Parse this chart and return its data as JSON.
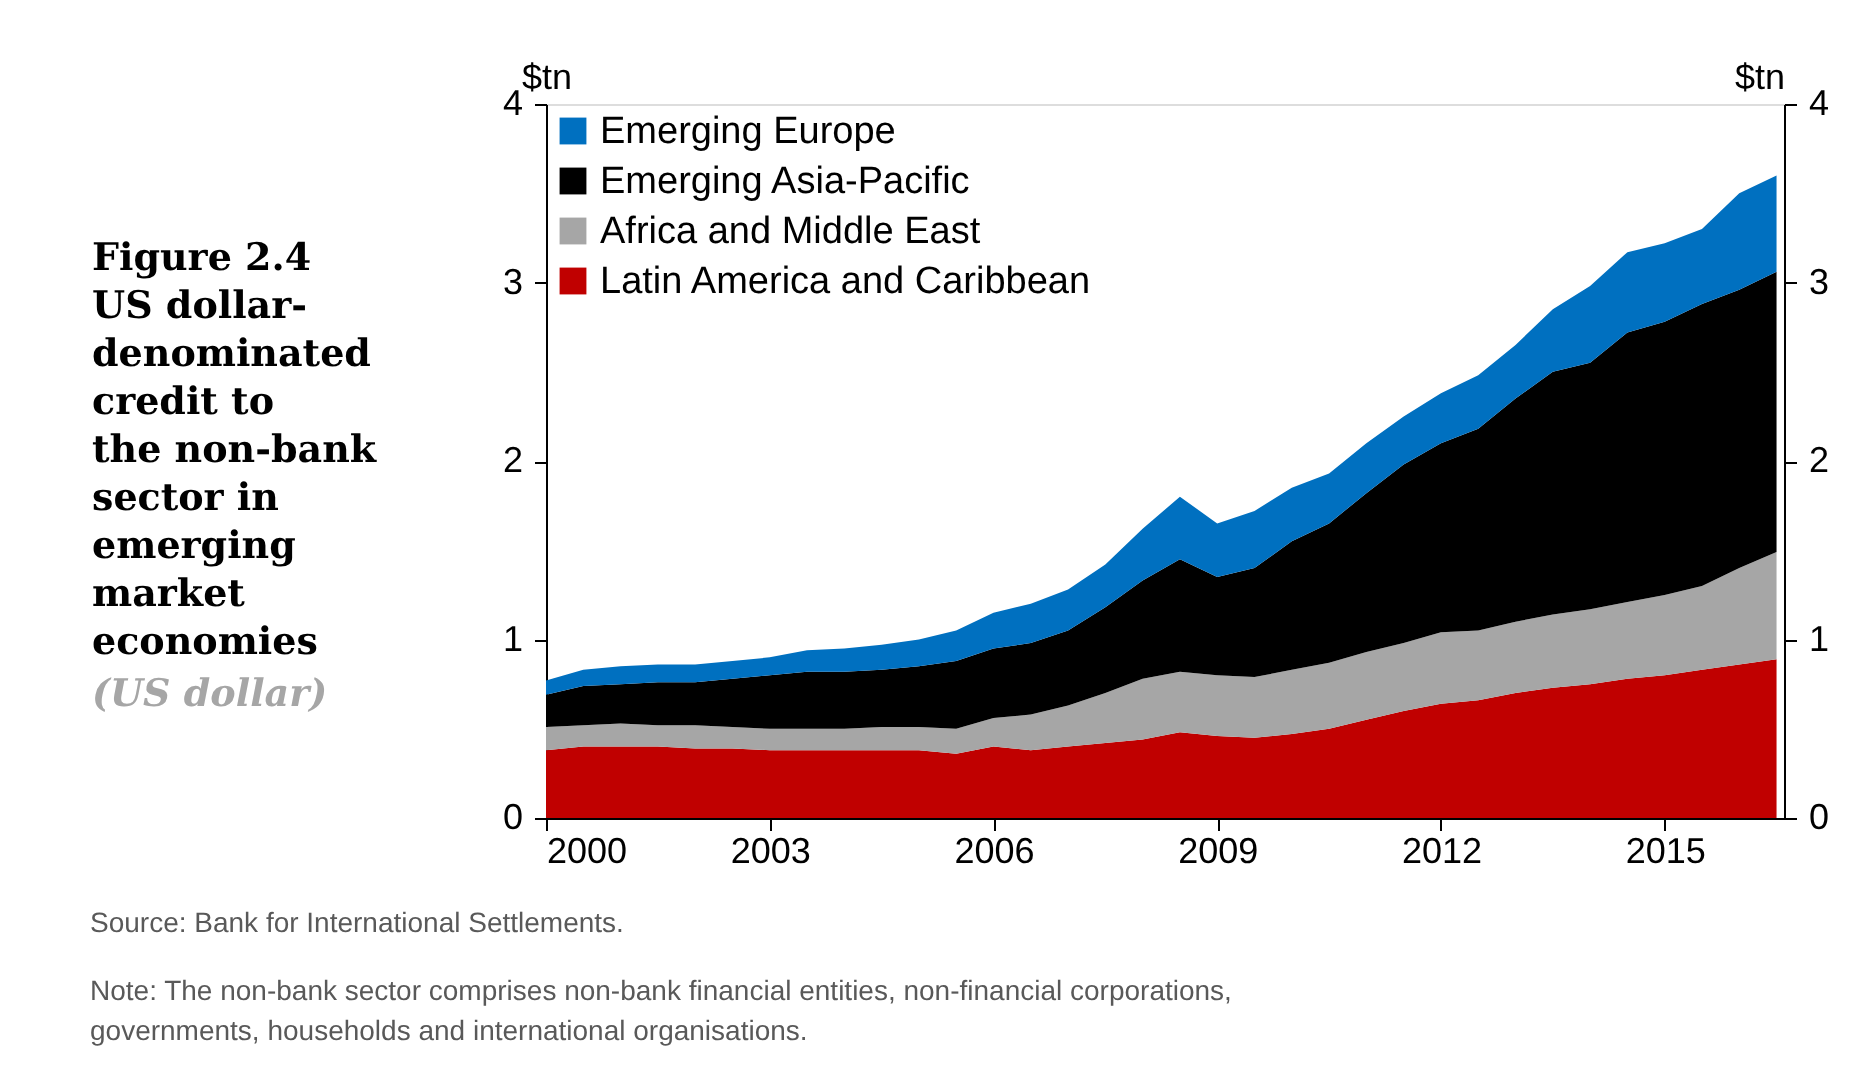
{
  "chart_data": {
    "type": "area",
    "title": "Figure 2.4 US dollar-denominated credit to the non-bank sector in emerging market economies",
    "subtitle": "(US dollar)",
    "ylabel": "$tn",
    "y2label": "$tn",
    "stacked": true,
    "legend": "top left",
    "grid": false,
    "x": [
      2000,
      2000.5,
      2001,
      2001.5,
      2002,
      2002.5,
      2003,
      2003.5,
      2004,
      2004.5,
      2005,
      2005.5,
      2006,
      2006.5,
      2007,
      2007.5,
      2008,
      2008.5,
      2009,
      2009.5,
      2010,
      2010.5,
      2011,
      2011.5,
      2012,
      2012.5,
      2013,
      2013.5,
      2014,
      2014.5,
      2015,
      2015.5,
      2016,
      2016.5
    ],
    "xlim": [
      2000,
      2016.6
    ],
    "xticks": [
      2000,
      2003,
      2006,
      2009,
      2012,
      2015
    ],
    "ylim": [
      0,
      4
    ],
    "yticks": [
      0,
      1,
      2,
      3,
      4
    ],
    "y2lim": [
      0,
      4
    ],
    "y2ticks": [
      0,
      1,
      2,
      3,
      4
    ],
    "series": [
      {
        "name": "Latin America and Caribbean",
        "color": "#c00000",
        "values": [
          0.38,
          0.4,
          0.4,
          0.4,
          0.39,
          0.39,
          0.38,
          0.38,
          0.38,
          0.38,
          0.38,
          0.36,
          0.4,
          0.38,
          0.4,
          0.42,
          0.44,
          0.48,
          0.46,
          0.45,
          0.47,
          0.5,
          0.55,
          0.6,
          0.64,
          0.66,
          0.7,
          0.73,
          0.75,
          0.78,
          0.8,
          0.83,
          0.86,
          0.89
        ]
      },
      {
        "name": "Africa and Middle East",
        "color": "#a6a6a6",
        "values": [
          0.13,
          0.12,
          0.13,
          0.12,
          0.13,
          0.12,
          0.12,
          0.12,
          0.12,
          0.13,
          0.13,
          0.14,
          0.16,
          0.2,
          0.23,
          0.28,
          0.34,
          0.34,
          0.34,
          0.34,
          0.36,
          0.37,
          0.38,
          0.38,
          0.4,
          0.39,
          0.4,
          0.41,
          0.42,
          0.43,
          0.45,
          0.47,
          0.54,
          0.6
        ]
      },
      {
        "name": "Emerging Asia-Pacific",
        "color": "#000000",
        "values": [
          0.18,
          0.22,
          0.22,
          0.24,
          0.24,
          0.27,
          0.3,
          0.32,
          0.32,
          0.32,
          0.34,
          0.38,
          0.39,
          0.4,
          0.42,
          0.48,
          0.55,
          0.63,
          0.55,
          0.61,
          0.72,
          0.78,
          0.89,
          1.0,
          1.06,
          1.13,
          1.25,
          1.36,
          1.38,
          1.51,
          1.53,
          1.58,
          1.56,
          1.57
        ]
      },
      {
        "name": "Emerging Europe",
        "color": "#0070c0",
        "values": [
          0.08,
          0.09,
          0.1,
          0.1,
          0.1,
          0.1,
          0.1,
          0.12,
          0.13,
          0.14,
          0.15,
          0.17,
          0.2,
          0.22,
          0.23,
          0.24,
          0.29,
          0.35,
          0.3,
          0.32,
          0.3,
          0.28,
          0.28,
          0.27,
          0.28,
          0.3,
          0.3,
          0.35,
          0.43,
          0.45,
          0.44,
          0.42,
          0.54,
          0.54
        ]
      }
    ],
    "annotations": [
      "Source:  Bank for International Settlements.",
      "Note:  The non-bank sector comprises non-bank financial entities, non-financial corporations, governments, households and international organisations."
    ]
  }
}
